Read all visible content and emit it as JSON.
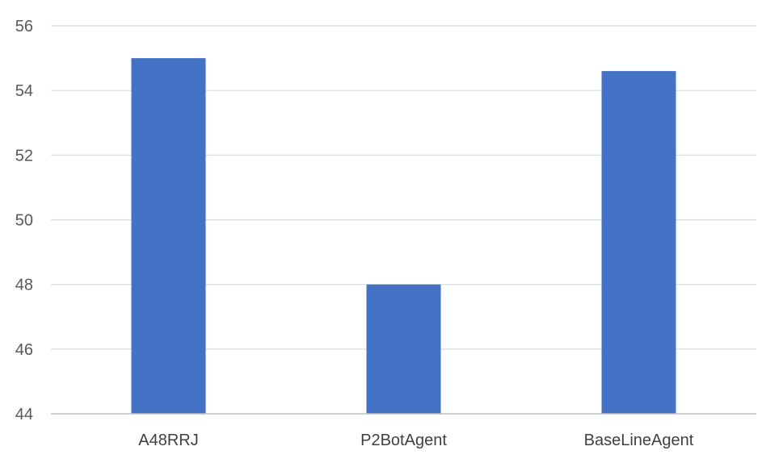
{
  "chart_data": {
    "type": "bar",
    "categories": [
      "A48RRJ",
      "P2BotAgent",
      "BaseLineAgent"
    ],
    "values": [
      55,
      48,
      54.6
    ],
    "title": "",
    "xlabel": "",
    "ylabel": "",
    "ylim": [
      44,
      56
    ],
    "yticks": [
      44,
      46,
      48,
      50,
      52,
      54,
      56
    ],
    "grid": true,
    "legend": "none",
    "bar_color": "#4472C4"
  }
}
